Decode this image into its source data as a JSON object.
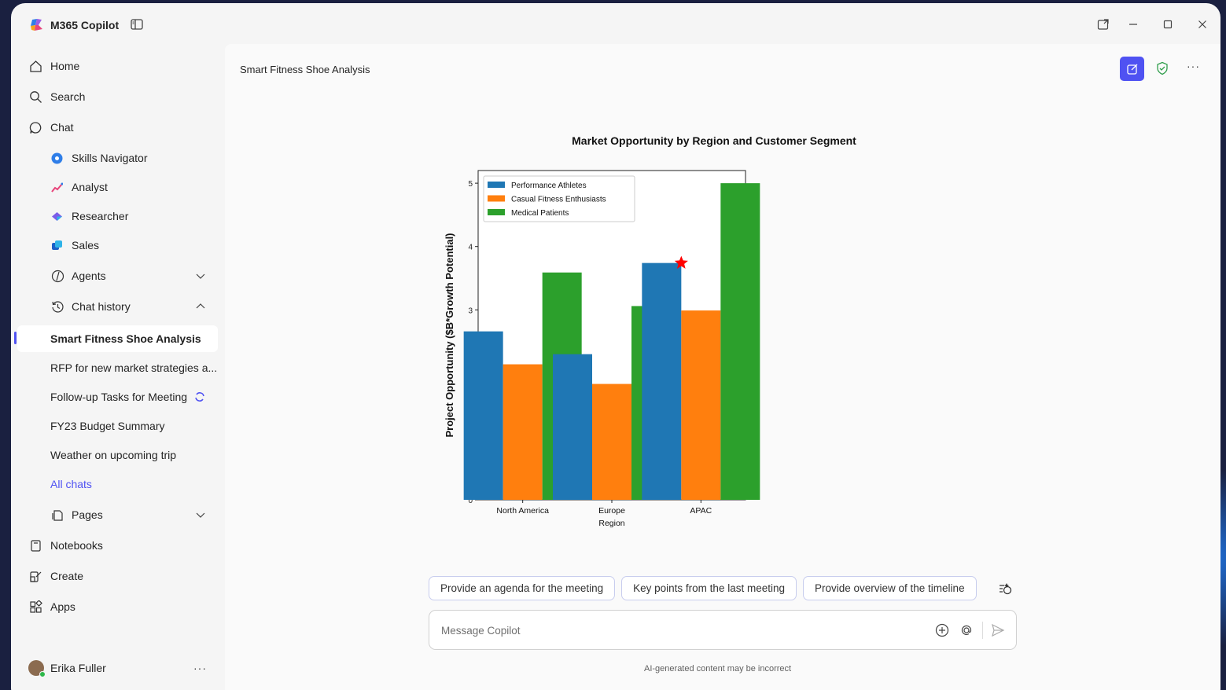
{
  "app": {
    "title": "M365 Copilot"
  },
  "sidebar": {
    "items": [
      {
        "label": "Home",
        "icon": "home-icon"
      },
      {
        "label": "Search",
        "icon": "search-icon"
      },
      {
        "label": "Chat",
        "icon": "chat-icon"
      }
    ],
    "agents": [
      {
        "label": "Skills Navigator",
        "icon": "skills-navigator-icon"
      },
      {
        "label": "Analyst",
        "icon": "analyst-icon"
      },
      {
        "label": "Researcher",
        "icon": "researcher-icon"
      },
      {
        "label": "Sales",
        "icon": "sales-icon"
      }
    ],
    "agents_label": "Agents",
    "chat_history_label": "Chat history",
    "history": [
      "Smart Fitness Shoe Analysis",
      "RFP for new market strategies a...",
      "Follow-up Tasks for Meeting",
      "FY23 Budget Summary",
      "Weather on upcoming trip"
    ],
    "all_chats": "All chats",
    "pages_label": "Pages",
    "bottom": [
      {
        "label": "Notebooks",
        "icon": "notebook-icon"
      },
      {
        "label": "Create",
        "icon": "create-icon"
      },
      {
        "label": "Apps",
        "icon": "apps-icon"
      }
    ],
    "user": {
      "name": "Erika Fuller"
    }
  },
  "main": {
    "conversation_title": "Smart Fitness Shoe Analysis",
    "suggestions": [
      "Provide an agenda for the meeting",
      "Key points from the last meeting",
      "Provide overview of the timeline"
    ],
    "input_placeholder": "Message Copilot",
    "disclaimer": "AI-generated content may be incorrect"
  },
  "colors": {
    "accent": "#4f52f2",
    "series": [
      "#1f77b4",
      "#ff7f0e",
      "#2ca02c"
    ]
  },
  "chart_data": {
    "type": "bar",
    "title": "Market Opportunity by Region and Customer Segment",
    "xlabel": "Region",
    "ylabel": "Project Opportunity ($B*Growth Potential)",
    "categories": [
      "North America",
      "Europe",
      "APAC"
    ],
    "series": [
      {
        "name": "Performance Athletes",
        "values": [
          2.66,
          2.3,
          3.74
        ]
      },
      {
        "name": "Casual Fitness Enthusiasts",
        "values": [
          2.14,
          1.83,
          2.99
        ]
      },
      {
        "name": "Medical Patients",
        "values": [
          3.59,
          3.06,
          5.0
        ]
      }
    ],
    "ylim": [
      0,
      5.2
    ],
    "yticks": [
      0,
      1,
      2,
      3,
      4,
      5
    ],
    "legend": "top-left",
    "grid": false,
    "annotation": {
      "marker": "star",
      "color": "#ff0000",
      "category": "APAC",
      "series": "Performance Athletes"
    }
  }
}
